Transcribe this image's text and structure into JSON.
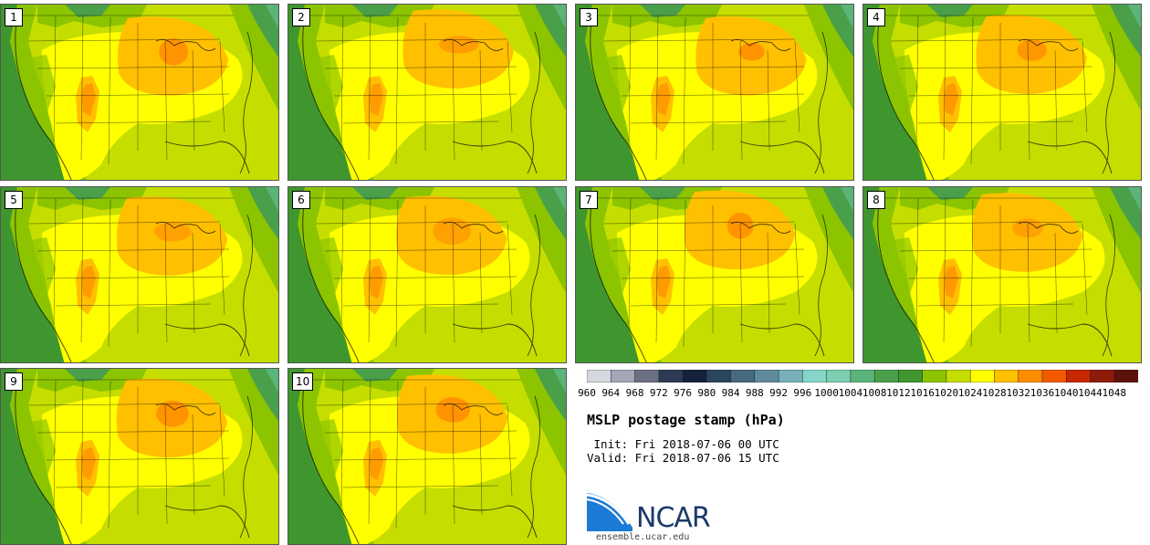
{
  "members": [
    "1",
    "2",
    "3",
    "4",
    "5",
    "6",
    "7",
    "8",
    "9",
    "10"
  ],
  "colorbar": {
    "levels": [
      "960",
      "964",
      "968",
      "972",
      "976",
      "980",
      "984",
      "988",
      "992",
      "996",
      "1000",
      "1004",
      "1008",
      "1012",
      "1016",
      "1020",
      "1024",
      "1028",
      "1032",
      "1036",
      "1040",
      "1044",
      "1048"
    ],
    "colors": [
      "#d6d8e0",
      "#a4a8b6",
      "#6c7085",
      "#2e3a55",
      "#15203a",
      "#2a4560",
      "#466a80",
      "#5f8a9c",
      "#77b0b8",
      "#85d6c8",
      "#7ccfb0",
      "#5bb47a",
      "#4aa04a",
      "#3f962e",
      "#8cc400",
      "#c5de00",
      "#ffff00",
      "#ffc000",
      "#ff8c00",
      "#f25a00",
      "#c82800",
      "#8e1a0a",
      "#5c1208"
    ]
  },
  "title": "MSLP postage stamp (hPa)",
  "init": " Init: Fri 2018-07-06 00 UTC",
  "valid": "Valid: Fri 2018-07-06 15 UTC",
  "logo": {
    "name": "NCAR",
    "url": "ensemble.ucar.edu"
  },
  "palette": {
    "bg": "#c5de00",
    "green_dark": "#3f962e",
    "green_mid": "#4aa04a",
    "green_light": "#8cc400",
    "teal": "#5bb47a",
    "yellow": "#ffff00",
    "orange_light": "#ffc000",
    "orange": "#ff8c00",
    "ncar_blue": "#1b5fa8"
  }
}
